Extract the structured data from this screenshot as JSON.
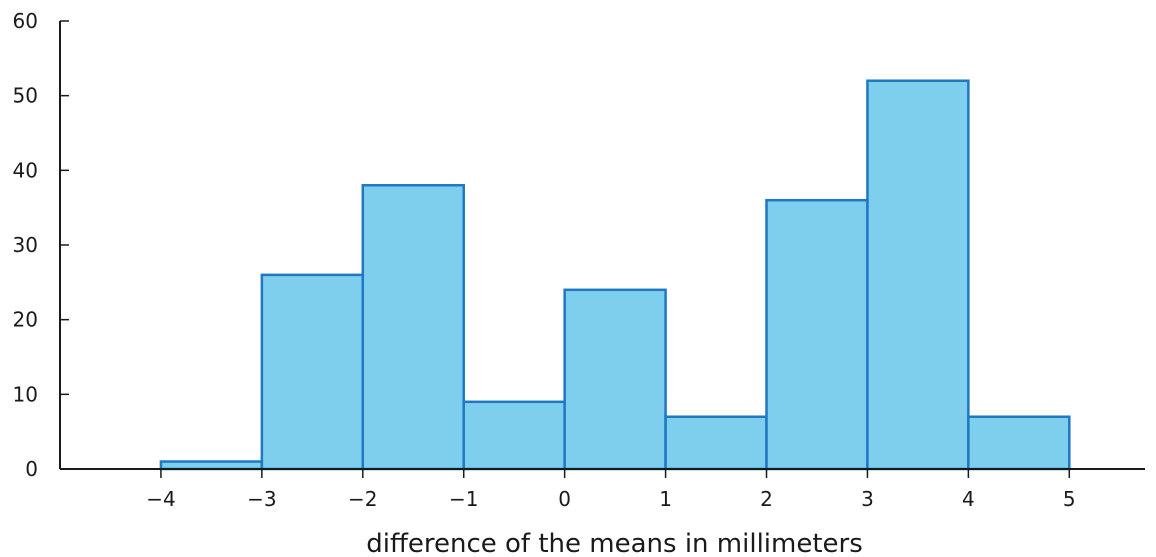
{
  "chart_data": {
    "type": "bar",
    "title": "",
    "xlabel": "difference of the means in millimeters",
    "ylabel": "",
    "bins": [
      {
        "start": -4,
        "end": -3,
        "count": 1
      },
      {
        "start": -3,
        "end": -2,
        "count": 26
      },
      {
        "start": -2,
        "end": -1,
        "count": 38
      },
      {
        "start": -1,
        "end": 0,
        "count": 9
      },
      {
        "start": 0,
        "end": 1,
        "count": 24
      },
      {
        "start": 1,
        "end": 2,
        "count": 7
      },
      {
        "start": 2,
        "end": 3,
        "count": 36
      },
      {
        "start": 3,
        "end": 4,
        "count": 52
      },
      {
        "start": 4,
        "end": 5,
        "count": 7
      }
    ],
    "xlim": [
      -5,
      5.75
    ],
    "ylim": [
      0,
      60
    ],
    "x_ticks": [
      -4,
      -3,
      -2,
      -1,
      0,
      1,
      2,
      3,
      4,
      5
    ],
    "x_tick_labels": [
      "−4",
      "−3",
      "−2",
      "−1",
      "0",
      "1",
      "2",
      "3",
      "4",
      "5"
    ],
    "y_ticks": [
      0,
      10,
      20,
      30,
      40,
      50,
      60
    ],
    "y_tick_labels": [
      "0",
      "10",
      "20",
      "30",
      "40",
      "50",
      "60"
    ],
    "grid": false,
    "colors": {
      "fill": "#7ecfee",
      "stroke": "#1f78c1",
      "axis": "#1a1a1a"
    }
  }
}
